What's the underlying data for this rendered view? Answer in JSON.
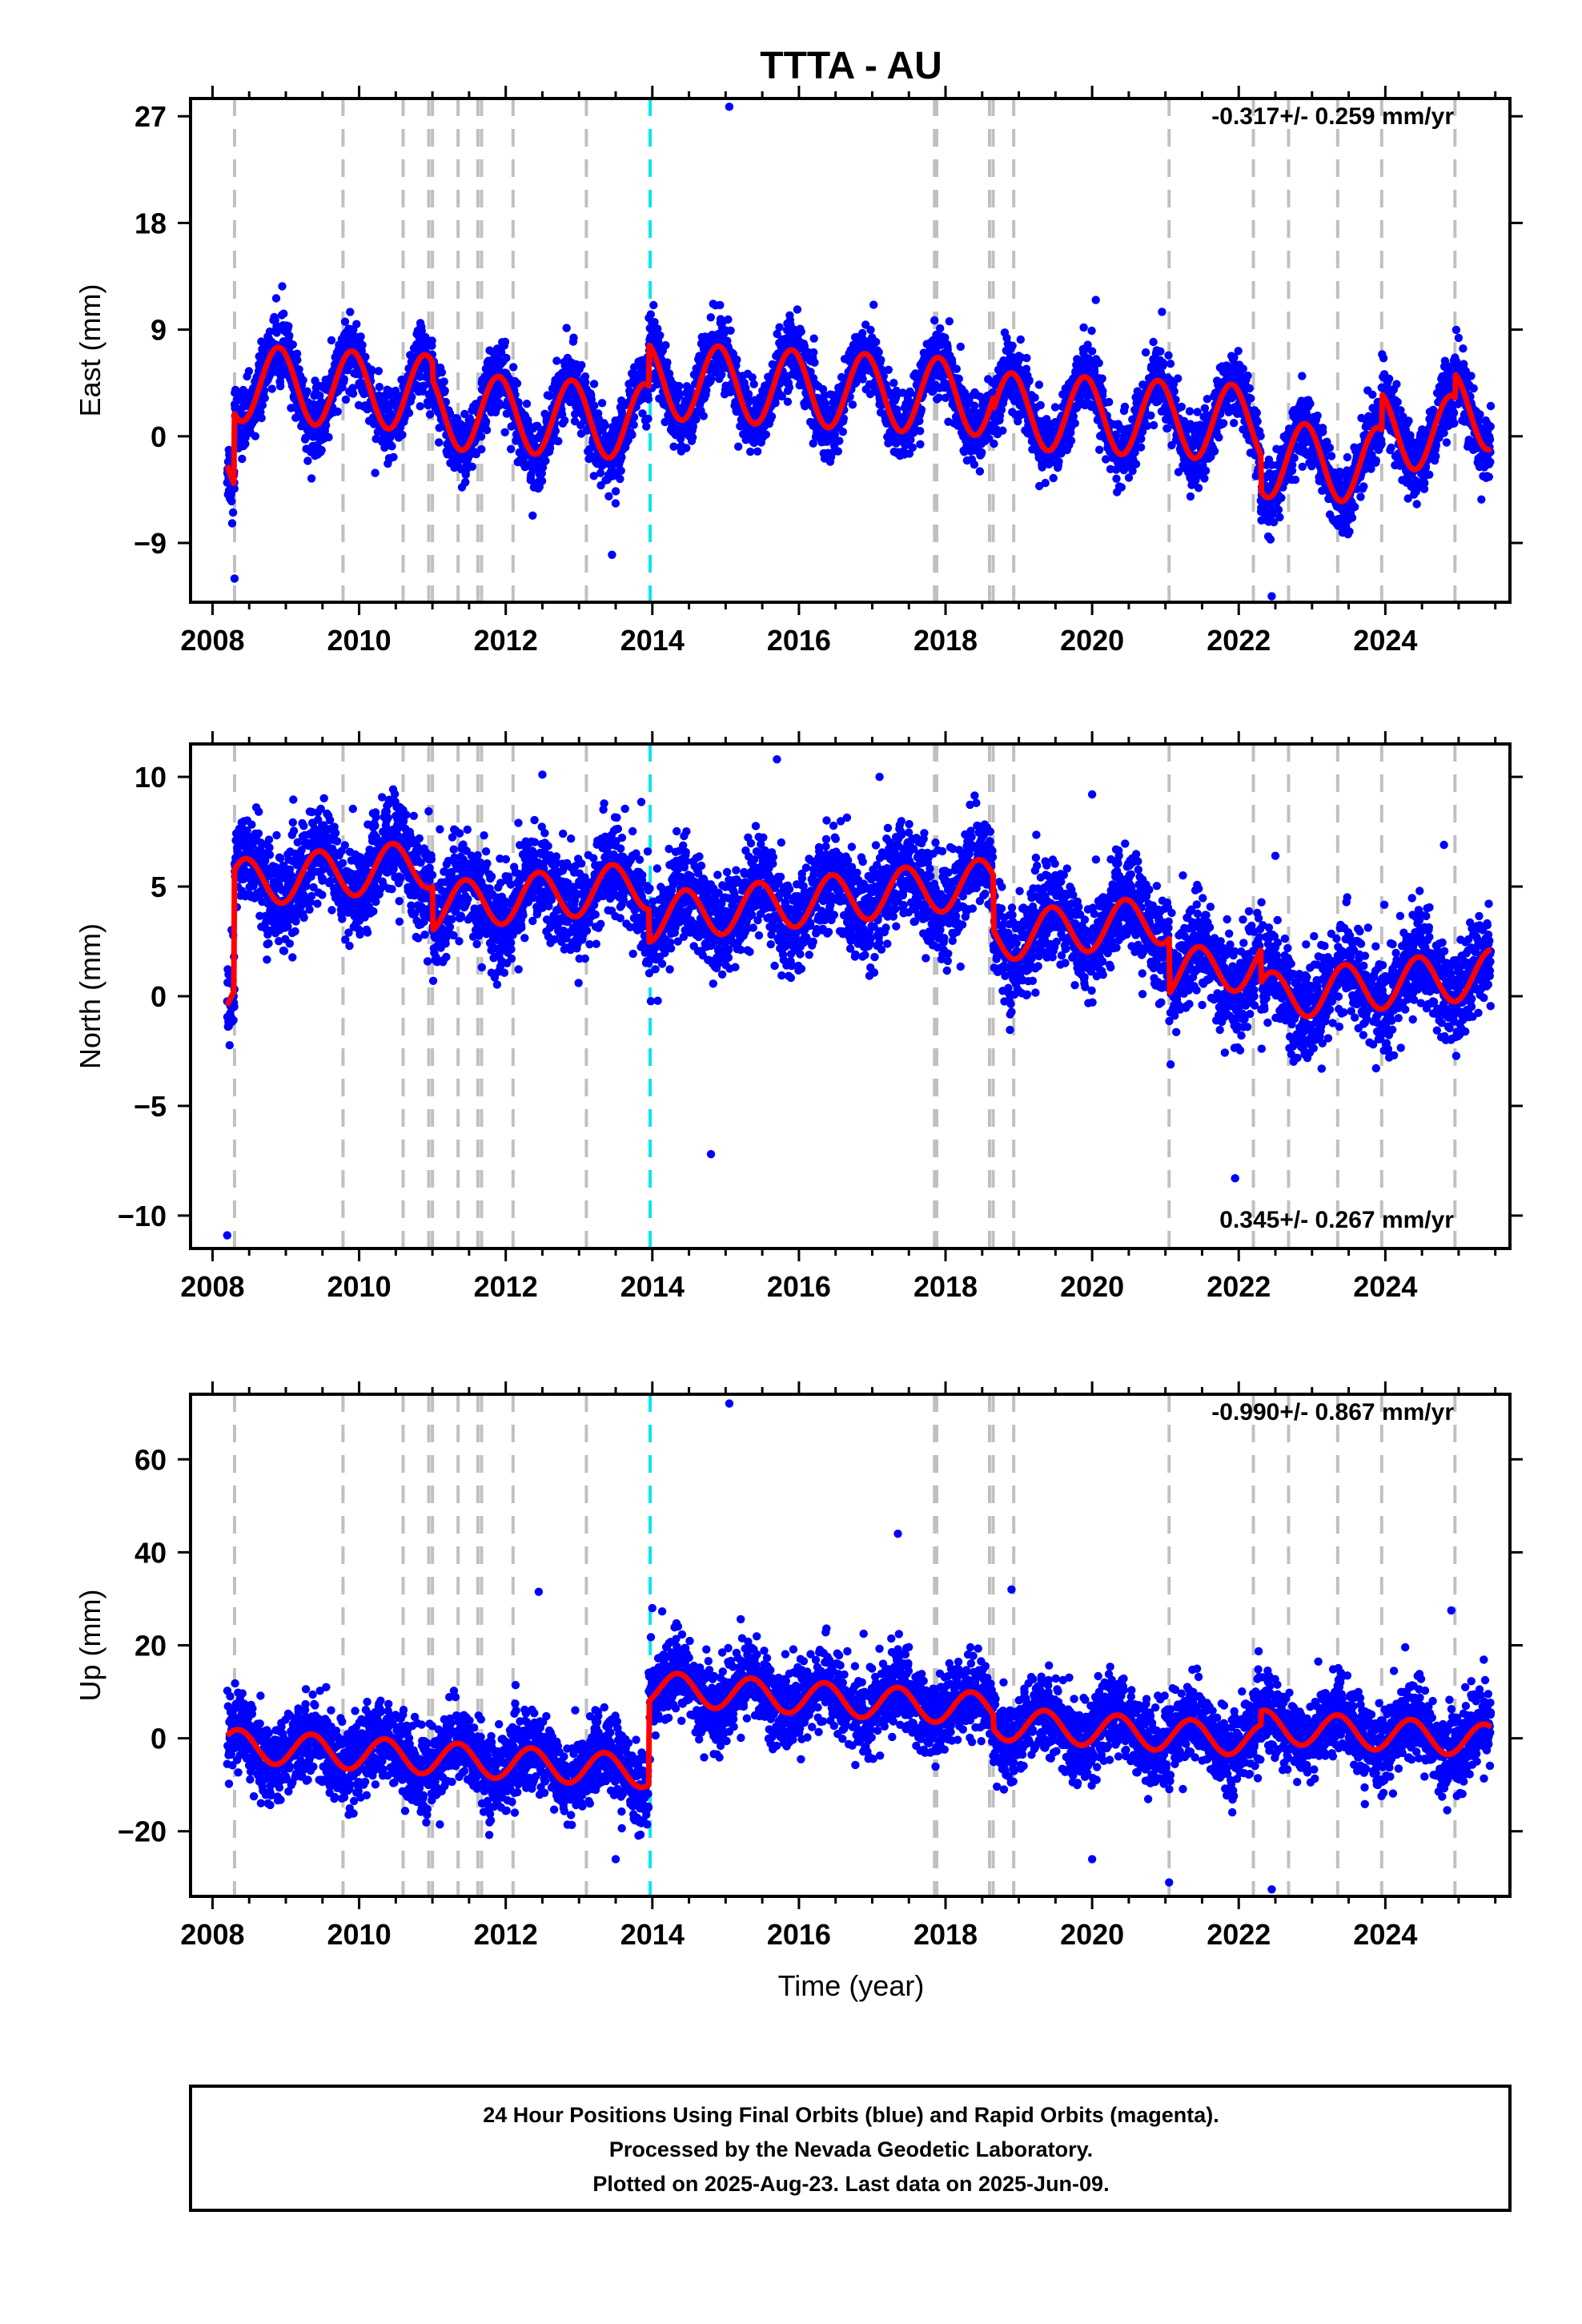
{
  "title": "TTTA - AU",
  "x_axis_label": "Time (year)",
  "note_lines": [
    "24 Hour Positions Using Final Orbits (blue) and Rapid Orbits (magenta).",
    "Processed by the Nevada Geodetic Laboratory.",
    "Plotted on 2025-Aug-23. Last data on 2025-Jun-09."
  ],
  "colors": {
    "final_orbits": "#0000ff",
    "model_fit": "#ff0000",
    "equipment_change": "#c0c0c0",
    "earthquake_event": "#00e5ee"
  },
  "chart_data": [
    {
      "type": "scatter",
      "component": "east",
      "ylabel": "East (mm)",
      "rate_label": "-0.317+/- 0.259 mm/yr",
      "rate_position": "top-right",
      "xlim": [
        2007.7,
        2025.7
      ],
      "ylim": [
        -14,
        28.5
      ],
      "x_ticks": [
        2008,
        2010,
        2012,
        2014,
        2016,
        2018,
        2020,
        2022,
        2024
      ],
      "y_ticks": [
        -9,
        0,
        9,
        18,
        27
      ],
      "data_start": 2008.2,
      "data_end": 2025.44,
      "trend": {
        "ref": 2016.8,
        "offset": 0.3,
        "rate_mm_yr": -0.317
      },
      "seasonal": {
        "amp_mm": 3.2,
        "phase_yr": 0.65
      },
      "steps": [
        [
          2008.3,
          6.0
        ],
        [
          2011.0,
          -1.5
        ],
        [
          2013.95,
          3.5
        ],
        [
          2018.65,
          -1.0
        ],
        [
          2022.3,
          -3.0
        ],
        [
          2023.95,
          3.0
        ],
        [
          2024.95,
          2.0
        ]
      ],
      "scatter_mm": 1.4,
      "outliers": [
        [
          2015.05,
          27.8
        ],
        [
          2020.05,
          11.5
        ],
        [
          2022.45,
          -13.5
        ],
        [
          2008.3,
          -12.0
        ],
        [
          2013.45,
          -10.0
        ]
      ]
    },
    {
      "type": "scatter",
      "component": "north",
      "ylabel": "North (mm)",
      "rate_label": "0.345+/- 0.267 mm/yr",
      "rate_position": "bottom-right",
      "xlim": [
        2007.7,
        2025.7
      ],
      "ylim": [
        -11.5,
        11.5
      ],
      "x_ticks": [
        2008,
        2010,
        2012,
        2014,
        2016,
        2018,
        2020,
        2022,
        2024
      ],
      "y_ticks": [
        -10,
        -5,
        0,
        5,
        10
      ],
      "data_start": 2008.2,
      "data_end": 2025.44,
      "trend": {
        "ref": 2016.8,
        "offset": 0.3,
        "rate_mm_yr": 0.345
      },
      "seasonal": {
        "amp_mm": 1.1,
        "phase_yr": 0.2
      },
      "steps": [
        [
          2008.3,
          5.5
        ],
        [
          2011.0,
          -2.0
        ],
        [
          2013.95,
          -1.5
        ],
        [
          2018.65,
          -2.5
        ],
        [
          2021.05,
          -2.5
        ],
        [
          2022.3,
          -1.5
        ]
      ],
      "scatter_mm": 1.1,
      "outliers": [
        [
          2012.5,
          10.1
        ],
        [
          2015.7,
          10.8
        ],
        [
          2017.1,
          10.0
        ],
        [
          2020.0,
          9.2
        ],
        [
          2022.5,
          6.4
        ],
        [
          2024.8,
          6.9
        ],
        [
          2008.2,
          -10.9
        ],
        [
          2014.8,
          -7.2
        ],
        [
          2021.95,
          -8.3
        ]
      ]
    },
    {
      "type": "scatter",
      "component": "up",
      "ylabel": "Up (mm)",
      "rate_label": "-0.990+/- 0.867 mm/yr",
      "rate_position": "top-right",
      "xlim": [
        2007.7,
        2025.7
      ],
      "ylim": [
        -34,
        74
      ],
      "x_ticks": [
        2008,
        2010,
        2012,
        2014,
        2016,
        2018,
        2020,
        2022,
        2024
      ],
      "y_ticks": [
        -20,
        0,
        20,
        40,
        60
      ],
      "data_start": 2008.2,
      "data_end": 2025.44,
      "trend": {
        "ref": 2016.8,
        "offset": -1.0,
        "rate_mm_yr": -0.99
      },
      "seasonal": {
        "amp_mm": 3.5,
        "phase_yr": 0.1
      },
      "steps": [
        [
          2013.95,
          18.0
        ],
        [
          2018.65,
          -3.0
        ],
        [
          2022.3,
          3.0
        ]
      ],
      "scatter_mm": 4.2,
      "outliers": [
        [
          2015.05,
          72.0
        ],
        [
          2017.35,
          44.0
        ],
        [
          2012.45,
          31.5
        ],
        [
          2018.9,
          32.0
        ],
        [
          2024.9,
          27.5
        ],
        [
          2014.0,
          28.0
        ],
        [
          2021.05,
          -31.0
        ],
        [
          2022.45,
          -32.5
        ],
        [
          2020.0,
          -26.0
        ],
        [
          2013.5,
          -26.0
        ]
      ]
    }
  ],
  "equipment_changes": [
    2008.3,
    2009.78,
    2010.6,
    2010.95,
    2011.0,
    2011.35,
    2011.62,
    2011.67,
    2012.1,
    2013.1,
    2017.85,
    2017.88,
    2018.6,
    2018.65,
    2018.93,
    2021.05,
    2022.2,
    2022.68,
    2023.35,
    2023.95,
    2024.95
  ],
  "earthquake_events": [
    2013.97
  ]
}
